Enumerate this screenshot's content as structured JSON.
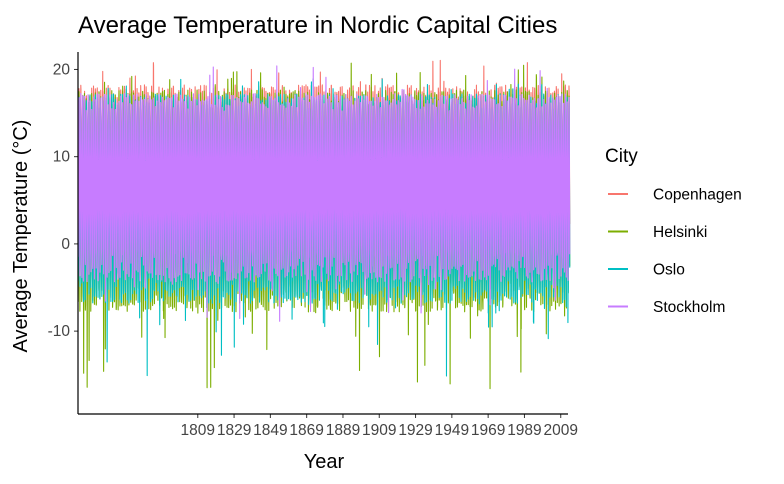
{
  "chart_data": {
    "type": "line",
    "title": "Average Temperature in Nordic Capital Cities",
    "xlabel": "Year",
    "ylabel": "Average Temperature (°C)",
    "xlim": [
      1743,
      2013
    ],
    "ylim": [
      -19.5,
      22
    ],
    "x_ticks": [
      1809,
      1829,
      1849,
      1869,
      1889,
      1909,
      1929,
      1949,
      1969,
      1989,
      2009
    ],
    "x_tick_labels": [
      "1809",
      "1829",
      "1849",
      "1869",
      "1889",
      "1909",
      "1929",
      "1949",
      "1969",
      "1989",
      "2009"
    ],
    "y_ticks": [
      -10,
      0,
      10,
      20
    ],
    "y_tick_labels": [
      "-10",
      "0",
      "10",
      "20"
    ],
    "grid": false,
    "legend": {
      "title": "City",
      "position": "right",
      "entries": [
        "Copenhagen",
        "Helsinki",
        "Oslo",
        "Stockholm"
      ]
    },
    "data_range": {
      "start_year": 1743,
      "end_year": 2013,
      "frequency": "monthly"
    },
    "series": [
      {
        "name": "Copenhagen",
        "color": "#F8766D",
        "typical_max": 17.5,
        "typical_min": -1.5,
        "extreme_max": 21.5,
        "extreme_min": -6.5
      },
      {
        "name": "Helsinki",
        "color": "#7CAE00",
        "typical_max": 17.0,
        "typical_min": -6.5,
        "extreme_max": 21.3,
        "extreme_min": -17.5
      },
      {
        "name": "Oslo",
        "color": "#00BFC4",
        "typical_max": 16.5,
        "typical_min": -5.5,
        "extreme_max": 19.5,
        "extreme_min": -16.0
      },
      {
        "name": "Stockholm",
        "color": "#C77CFF",
        "typical_max": 16.5,
        "typical_min": -3.0,
        "extreme_max": 21.0,
        "extreme_min": -9.5
      }
    ]
  }
}
